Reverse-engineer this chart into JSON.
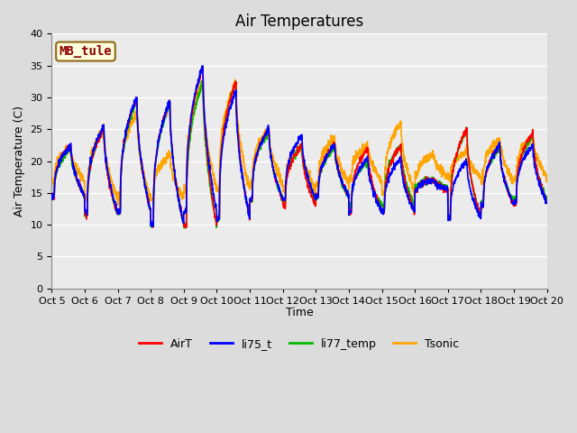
{
  "title": "Air Temperatures",
  "xlabel": "Time",
  "ylabel": "Air Temperature (C)",
  "ylim": [
    0,
    40
  ],
  "yticks": [
    0,
    5,
    10,
    15,
    20,
    25,
    30,
    35,
    40
  ],
  "x_labels": [
    "Oct 5",
    "Oct 6",
    "Oct 7",
    "Oct 8",
    "Oct 9",
    "Oct 10",
    "Oct 11",
    "Oct 12",
    "Oct 13",
    "Oct 14",
    "Oct 15",
    "Oct 16",
    "Oct 17",
    "Oct 18",
    "Oct 19",
    "Oct 20"
  ],
  "annotation": "MB_tule",
  "annotation_color": "#8B0000",
  "annotation_bg": "#FFFFDD",
  "annotation_border": "#8B6914",
  "line_colors": {
    "AirT": "#FF0000",
    "li75_t": "#0000FF",
    "li77_temp": "#00BB00",
    "Tsonic": "#FFA500"
  },
  "line_widths": {
    "AirT": 1.2,
    "li75_t": 1.2,
    "li77_temp": 1.2,
    "Tsonic": 1.2
  },
  "bg_color": "#DCDCDC",
  "plot_bg": "#EBEBEB",
  "grid_color": "#FFFFFF",
  "title_fontsize": 12,
  "axis_label_fontsize": 9,
  "tick_fontsize": 8,
  "legend_fontsize": 9
}
